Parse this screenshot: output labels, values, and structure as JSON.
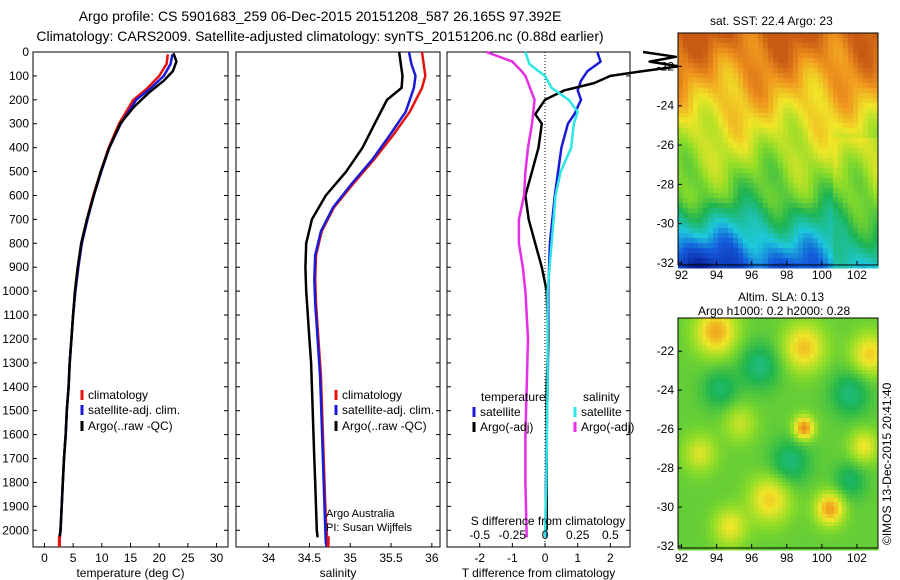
{
  "header": {
    "line1": "Argo profile: CS 5901683_259 06-Dec-2015 20151208_587 26.165S 97.392E",
    "line2": "Climatology: CARS2009. Satellite-adjusted climatology: synTS_20151206.nc (0.88d earlier)"
  },
  "colors": {
    "climatology": "#e8120c",
    "satellite": "#1a1ad6",
    "argo": "#000000",
    "salinity_satellite": "#2ee6e6",
    "salinity_argo": "#e62ee6"
  },
  "depth_ticks": [
    0,
    100,
    200,
    300,
    400,
    500,
    600,
    700,
    800,
    900,
    1000,
    1100,
    1200,
    1300,
    1400,
    1500,
    1600,
    1700,
    1800,
    1900,
    2000
  ],
  "chart_data": [
    {
      "type": "line",
      "xlabel": "temperature (deg C)",
      "ylabel": "",
      "xlim": [
        -2,
        32
      ],
      "ylim": [
        2070,
        0
      ],
      "xticks": [
        "0",
        "5",
        "10",
        "15",
        "20",
        "25",
        "30"
      ],
      "legend": [
        "climatology",
        "satellite-adj. clim.",
        "Argo(..raw -QC)"
      ],
      "legend_position": "lower-right",
      "series": [
        {
          "name": "climatology",
          "x": [
            21.5,
            21.3,
            20.0,
            18.0,
            15.5,
            13.0,
            11.2,
            9.8,
            8.5,
            7.4,
            6.5,
            5.9,
            5.4,
            5.0,
            4.7,
            4.4,
            4.2,
            3.9,
            3.7,
            3.4,
            3.2,
            3.0,
            2.8,
            2.6
          ],
          "y": [
            10,
            50,
            100,
            150,
            200,
            300,
            400,
            500,
            600,
            700,
            800,
            900,
            1000,
            1100,
            1200,
            1300,
            1400,
            1500,
            1600,
            1700,
            1800,
            1900,
            2000,
            2050
          ]
        },
        {
          "name": "satellite-adj. clim.",
          "x": [
            22.3,
            22.0,
            20.8,
            18.6,
            16.0,
            13.3,
            11.3,
            9.9,
            8.6,
            7.5,
            6.5,
            5.9,
            5.4,
            5.0,
            4.7,
            4.4,
            4.2,
            3.9,
            3.7,
            3.4,
            3.2,
            3.0,
            2.8,
            2.6
          ],
          "y": [
            10,
            50,
            100,
            150,
            200,
            300,
            400,
            500,
            600,
            700,
            800,
            900,
            1000,
            1100,
            1200,
            1300,
            1400,
            1500,
            1600,
            1700,
            1800,
            1900,
            2000,
            2050
          ]
        },
        {
          "name": "Argo(..raw -QC)",
          "x": [
            22.5,
            23.0,
            22.4,
            20.8,
            18.2,
            15.6,
            13.2,
            11.3,
            9.8,
            8.6,
            7.4,
            6.4,
            5.8,
            5.3,
            5.0,
            4.7,
            4.4,
            4.2,
            3.9,
            3.7,
            3.4,
            3.2,
            3.0,
            2.8,
            2.6
          ],
          "y": [
            5,
            40,
            80,
            120,
            170,
            230,
            300,
            400,
            500,
            600,
            700,
            800,
            900,
            1000,
            1100,
            1200,
            1300,
            1400,
            1500,
            1600,
            1700,
            1800,
            1900,
            2000,
            2030
          ]
        }
      ]
    },
    {
      "type": "line",
      "xlabel": "salinity",
      "ylabel": "",
      "xlim": [
        33.6,
        36.1
      ],
      "ylim": [
        2070,
        0
      ],
      "xticks": [
        "34",
        "34.5",
        "35",
        "35.5",
        "36"
      ],
      "legend": [
        "climatology",
        "satellite-adj. clim.",
        "Argo(..raw -QC)"
      ],
      "legend_position": "lower-right",
      "annotations": [
        "Argo Australia",
        "PI: Susan Wijffels"
      ],
      "series": [
        {
          "name": "climatology",
          "x": [
            35.88,
            35.9,
            35.92,
            35.88,
            35.73,
            35.52,
            35.29,
            35.04,
            34.8,
            34.65,
            34.58,
            34.57,
            34.58,
            34.6,
            34.62,
            34.64,
            34.65,
            34.66,
            34.67,
            34.68,
            34.69,
            34.7,
            34.72,
            34.73
          ],
          "y": [
            0,
            50,
            100,
            150,
            250,
            350,
            450,
            550,
            650,
            750,
            850,
            950,
            1050,
            1150,
            1250,
            1350,
            1450,
            1550,
            1650,
            1750,
            1850,
            1950,
            2050,
            2070
          ]
        },
        {
          "name": "satellite-adj. clim.",
          "x": [
            35.72,
            35.75,
            35.8,
            35.78,
            35.68,
            35.48,
            35.27,
            35.02,
            34.79,
            34.64,
            34.57,
            34.56,
            34.57,
            34.59,
            34.61,
            34.63,
            34.64,
            34.65,
            34.66,
            34.67,
            34.68,
            34.69,
            34.7,
            34.71
          ],
          "y": [
            0,
            50,
            100,
            150,
            250,
            350,
            450,
            550,
            650,
            750,
            850,
            950,
            1050,
            1150,
            1250,
            1350,
            1450,
            1550,
            1650,
            1750,
            1850,
            1950,
            2050,
            2070
          ]
        },
        {
          "name": "Argo(..raw -QC)",
          "x": [
            35.6,
            35.62,
            35.64,
            35.63,
            35.45,
            35.3,
            35.15,
            34.95,
            34.7,
            34.53,
            34.46,
            34.45,
            34.46,
            34.48,
            34.5,
            34.52,
            34.53,
            34.54,
            34.55,
            34.56,
            34.57,
            34.58,
            34.59,
            34.6
          ],
          "y": [
            0,
            50,
            100,
            150,
            200,
            300,
            400,
            500,
            600,
            700,
            800,
            900,
            1000,
            1100,
            1200,
            1300,
            1400,
            1500,
            1600,
            1700,
            1800,
            1900,
            2000,
            2030
          ]
        }
      ]
    },
    {
      "type": "line",
      "xlabel": "T difference from climatology",
      "x2label": "S difference from climatology",
      "ylabel": "",
      "xlim": [
        -3.0,
        2.6
      ],
      "ylim": [
        2070,
        0
      ],
      "xticks": [
        "-2",
        "-1",
        "0",
        "1",
        "2"
      ],
      "x2ticks": [
        "-0.5",
        "-0.25",
        "0",
        "0.25",
        "0.5"
      ],
      "legend_groups": {
        "temperature": [
          "satellite",
          "Argo(-adj)"
        ],
        "salinity": [
          "satellite",
          "Argo(-adj)"
        ]
      },
      "legend_position": "lower-right",
      "series": [
        {
          "name": "temperature satellite",
          "x": [
            1.6,
            1.7,
            1.3,
            1.1,
            1.0,
            1.1,
            0.9,
            0.7,
            0.5,
            0.4,
            0.3,
            0.15,
            0.1,
            0.1,
            0.08,
            0.05,
            0.03,
            0.02,
            0.02,
            0.02
          ],
          "y": [
            0,
            40,
            80,
            120,
            160,
            200,
            260,
            300,
            400,
            500,
            600,
            800,
            1000,
            1200,
            1400,
            1600,
            1800,
            1900,
            2000,
            2030
          ]
        },
        {
          "name": "temperature Argo(-adj)",
          "x": [
            3.0,
            4.0,
            3.2,
            4.1,
            3.0,
            2.0,
            1.5,
            0.6,
            0.0,
            -0.3,
            -0.1,
            -0.2,
            -0.4,
            -0.6,
            -0.5,
            -0.3,
            -0.1,
            0.05,
            0.1,
            0.05,
            0.05,
            0.05,
            0.05
          ],
          "y": [
            0,
            20,
            40,
            60,
            80,
            100,
            130,
            160,
            200,
            260,
            300,
            400,
            500,
            600,
            700,
            800,
            900,
            1000,
            1200,
            1400,
            1600,
            1800,
            2000
          ]
        },
        {
          "name": "salinity satellite",
          "x": [
            -0.15,
            -0.12,
            -0.05,
            0.0,
            0.05,
            0.18,
            0.25,
            0.22,
            0.2,
            0.12,
            0.08,
            0.05,
            0.02,
            0.02,
            0.01,
            0.0
          ],
          "y": [
            0,
            50,
            80,
            100,
            150,
            200,
            250,
            300,
            400,
            500,
            600,
            800,
            1000,
            1400,
            1800,
            2030
          ]
        },
        {
          "name": "salinity Argo(-adj)",
          "x": [
            -0.45,
            -0.25,
            -0.18,
            -0.15,
            -0.08,
            -0.1,
            -0.13,
            -0.15,
            -0.16,
            -0.2,
            -0.2,
            -0.17,
            -0.15,
            -0.13,
            -0.14,
            -0.15,
            -0.15,
            -0.14
          ],
          "y": [
            0,
            40,
            80,
            100,
            200,
            300,
            400,
            500,
            600,
            700,
            800,
            900,
            1000,
            1200,
            1400,
            1600,
            1800,
            2030
          ]
        }
      ]
    },
    {
      "type": "heatmap",
      "title": "sat. SST: 22.4  Argo: 23",
      "xlim": [
        91.8,
        103.2
      ],
      "ylim": [
        -32.1,
        -20.3
      ],
      "xticks": [
        "92",
        "94",
        "96",
        "98",
        "100",
        "102"
      ],
      "yticks": [
        "-22",
        "-24",
        "-26",
        "-28",
        "-30",
        "-32"
      ]
    },
    {
      "type": "heatmap",
      "title": "Altim. SLA: 0.13",
      "subtitle": "Argo h1000: 0.2 h2000: 0.28",
      "xlim": [
        91.8,
        103.2
      ],
      "ylim": [
        -32.1,
        -20.3
      ],
      "xticks": [
        "92",
        "94",
        "96",
        "98",
        "100",
        "102"
      ],
      "yticks": [
        "-22",
        "-24",
        "-26",
        "-28",
        "-30",
        "-32"
      ]
    }
  ],
  "watermark": "©IMOS 13-Dec-2015 20:41:40"
}
